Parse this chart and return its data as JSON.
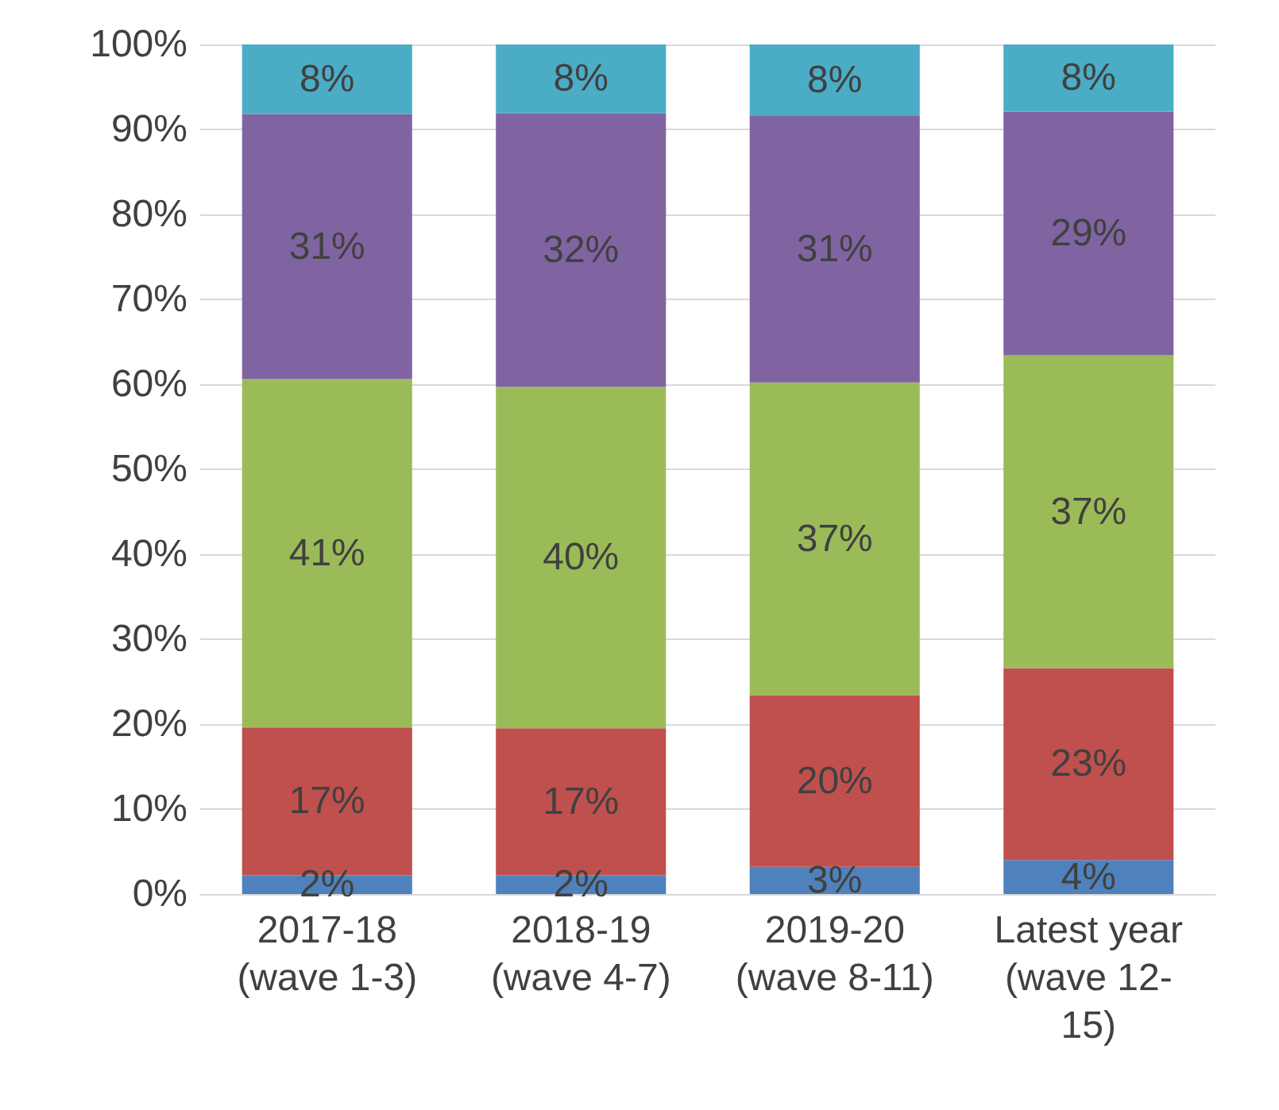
{
  "chart_data": {
    "type": "bar",
    "stacked": true,
    "categories": [
      "2017-18\n(wave 1-3)",
      "2018-19\n(wave 4-7)",
      "2019-20\n(wave 8-11)",
      "Latest year\n(wave 12-\n15)"
    ],
    "series": [
      {
        "color": "#4f81bd",
        "values": [
          2.2,
          2.2,
          3.2,
          4.0
        ],
        "value_labels": [
          "2%",
          "2%",
          "3%",
          "4%"
        ]
      },
      {
        "color": "#c0504d",
        "values": [
          17.4,
          17.3,
          20.2,
          22.6
        ],
        "value_labels": [
          "17%",
          "17%",
          "20%",
          "23%"
        ]
      },
      {
        "color": "#9bbb59",
        "values": [
          41.0,
          40.2,
          36.8,
          36.8
        ],
        "value_labels": [
          "41%",
          "40%",
          "37%",
          "37%"
        ]
      },
      {
        "color": "#8064a2",
        "values": [
          31.2,
          32.2,
          31.4,
          28.7
        ],
        "value_labels": [
          "31%",
          "32%",
          "31%",
          "29%"
        ]
      },
      {
        "color": "#4bacc6",
        "values": [
          8.2,
          8.1,
          8.4,
          7.9
        ],
        "value_labels": [
          "8%",
          "8%",
          "8%",
          "8%"
        ]
      }
    ],
    "ylim": [
      0,
      100
    ],
    "yticks": [
      {
        "value": 0,
        "label": "0%"
      },
      {
        "value": 10,
        "label": "10%"
      },
      {
        "value": 20,
        "label": "20%"
      },
      {
        "value": 30,
        "label": "30%"
      },
      {
        "value": 40,
        "label": "40%"
      },
      {
        "value": 50,
        "label": "50%"
      },
      {
        "value": 60,
        "label": "60%"
      },
      {
        "value": 70,
        "label": "70%"
      },
      {
        "value": 80,
        "label": "80%"
      },
      {
        "value": 90,
        "label": "90%"
      },
      {
        "value": 100,
        "label": "100%"
      }
    ],
    "grid": "y"
  }
}
